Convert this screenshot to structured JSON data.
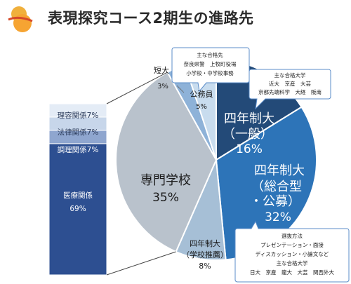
{
  "header": {
    "title": "表現探究コース2期生の進路先"
  },
  "colors": {
    "shikonen_ippan": "#234a78",
    "shikonen_sogo": "#2d74b8",
    "shikonen_suisen": "#a6bfd6",
    "senmon": "#b9c2cc",
    "tandai": "#8eb2d8",
    "koumuin": "#c8dcee",
    "bar_rikei": "#e4ecf6",
    "bar_horitsu": "#c7d6ea",
    "bar_chori": "#8fa6cf",
    "bar_iryo": "#2d4f91",
    "callout_bg": "#ffffff",
    "callout_border": "#5b8cc8"
  },
  "chart_data": [
    {
      "type": "pie",
      "title": "",
      "slices": [
        {
          "label": "四年制大\n(一般)",
          "value": 16,
          "display": "16%"
        },
        {
          "label": "四年制大\n(総合型\n・公募)",
          "value": 32,
          "display": "32%"
        },
        {
          "label": "四年制大\n(学校推薦)",
          "value": 8,
          "display": "8%"
        },
        {
          "label": "専門学校",
          "value": 35,
          "display": "35%"
        },
        {
          "label": "短大",
          "value": 3,
          "display": "3%"
        },
        {
          "label": "公務員",
          "value": 5,
          "display": "5%"
        }
      ]
    },
    {
      "type": "bar",
      "orientation": "stacked-vertical",
      "parent": "専門学校",
      "categories": [
        "理容関係",
        "法律関係",
        "調理関係",
        "医療関係"
      ],
      "values": [
        7,
        7,
        7,
        69
      ],
      "display": [
        "7%",
        "7%",
        "7%",
        "69%"
      ]
    }
  ],
  "labels": {
    "ippan_1": "四年制大",
    "ippan_2": "（一般）",
    "ippan_pct": "16%",
    "sogo_1": "四年制大",
    "sogo_2": "（総合型",
    "sogo_3": "・公募）",
    "sogo_pct": "32%",
    "suisen_1": "四年制大",
    "suisen_2": "（学校推薦）",
    "suisen_pct": "8%",
    "senmon_1": "専門学校",
    "senmon_pct": "35%",
    "tandai_1": "短大",
    "tandai_pct": "3%",
    "koumuin_1": "公務員",
    "koumuin_pct": "5%"
  },
  "bar_labels": {
    "rikei": "理容関係7%",
    "horitsu": "法律関係7%",
    "chori": "調理関係7%",
    "iryo_1": "医療関係",
    "iryo_2": "69%"
  },
  "callouts": {
    "koumuin": {
      "lines": [
        "主な合格先",
        "奈良県警　上牧町役場",
        "小学校・中学校事務"
      ]
    },
    "ippan": {
      "lines": [
        "主な合格大学",
        "近大　京産　大芸",
        "京都先端科学　大経　阪南"
      ]
    },
    "sogo": {
      "lines": [
        "選抜方法",
        "プレゼンテーション・面接",
        "ディスカッション・小論文など",
        "主な合格大学",
        "日大　京産　龍大　大芸　関西外大"
      ]
    }
  }
}
